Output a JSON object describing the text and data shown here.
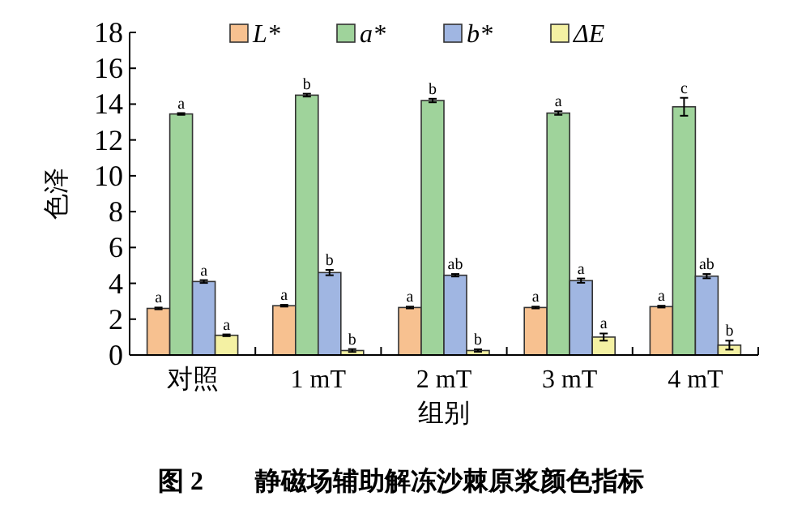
{
  "chart_data": {
    "type": "bar",
    "title": "图 2　　静磁场辅助解冻沙棘原浆颜色指标",
    "xlabel": "组别",
    "ylabel": "色泽",
    "categories": [
      "对照",
      "1 mT",
      "2 mT",
      "3 mT",
      "4 mT"
    ],
    "series": [
      {
        "name": "L*",
        "color": "#f7c190",
        "values": [
          2.6,
          2.75,
          2.65,
          2.65,
          2.7
        ],
        "errors": [
          0.05,
          0.05,
          0.05,
          0.05,
          0.05
        ],
        "value_labels": [
          "a",
          "a",
          "a",
          "a",
          "a"
        ]
      },
      {
        "name": "a*",
        "color": "#9fd39b",
        "values": [
          13.45,
          14.5,
          14.2,
          13.5,
          13.85
        ],
        "errors": [
          0.05,
          0.08,
          0.1,
          0.1,
          0.5
        ],
        "value_labels": [
          "a",
          "b",
          "b",
          "a",
          "c"
        ]
      },
      {
        "name": "b*",
        "color": "#a0b6e2",
        "values": [
          4.1,
          4.6,
          4.45,
          4.15,
          4.4
        ],
        "errors": [
          0.08,
          0.15,
          0.07,
          0.12,
          0.12
        ],
        "value_labels": [
          "a",
          "b",
          "ab",
          "a",
          "ab"
        ]
      },
      {
        "name": "ΔE",
        "color": "#f4f1a3",
        "values": [
          1.1,
          0.25,
          0.25,
          1.0,
          0.55
        ],
        "errors": [
          0.05,
          0.08,
          0.07,
          0.2,
          0.25
        ],
        "value_labels": [
          "a",
          "b",
          "b",
          "a",
          "b"
        ]
      }
    ],
    "ylim": [
      0,
      18
    ],
    "yticks": [
      0,
      2,
      4,
      6,
      8,
      10,
      12,
      14,
      16,
      18
    ],
    "legend": "top",
    "grid": false
  }
}
